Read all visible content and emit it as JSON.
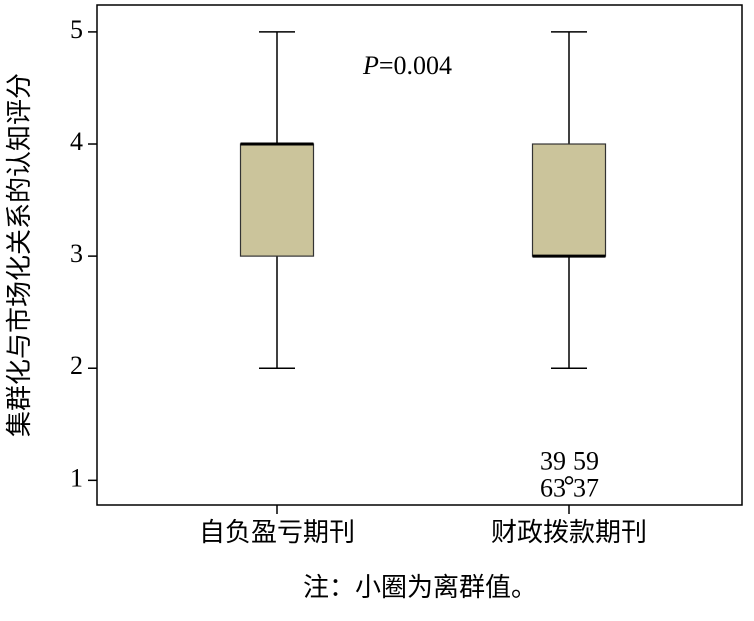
{
  "chart_data": {
    "type": "box",
    "y_label": "集群化与市场化关系的认知评分",
    "annotation_symbol": "P",
    "annotation_value": "=0.004",
    "note": "注：小圈为离群值。",
    "categories": [
      "自负盈亏期刊",
      "财政拨款期刊"
    ],
    "color": "#cbc49b",
    "boxes": [
      {
        "min": 2,
        "q1": 3,
        "median": 4,
        "q3": 4,
        "max": 5,
        "outliers": [],
        "outlier_labels": []
      },
      {
        "min": 2,
        "q1": 3,
        "median": 3,
        "q3": 4,
        "max": 5,
        "outliers": [
          1
        ],
        "outlier_labels": [
          "39",
          "59",
          "63",
          "37"
        ]
      }
    ],
    "ylim": [
      0.78,
      5.24
    ],
    "yticks": [
      1,
      2,
      3,
      4,
      5
    ]
  }
}
